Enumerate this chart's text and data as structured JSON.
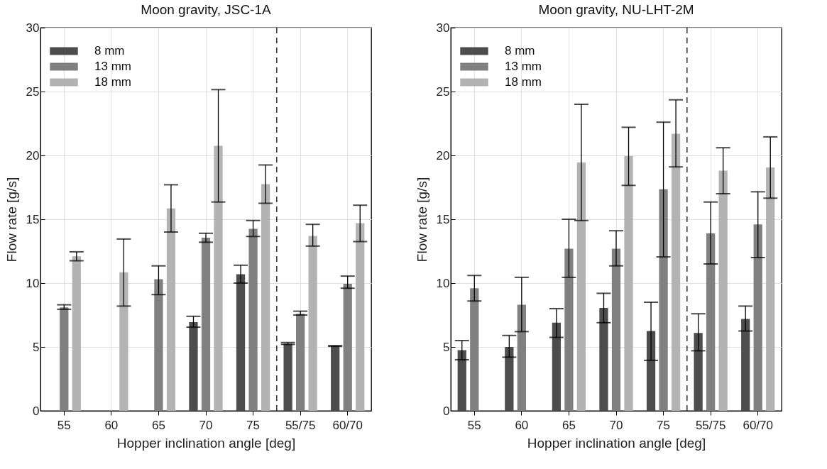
{
  "chart_data": [
    {
      "type": "bar",
      "title": "Moon gravity, JSC-1A",
      "xlabel": "Hopper inclination angle [deg]",
      "ylabel": "Flow rate [g/s]",
      "categories": [
        "55",
        "60",
        "65",
        "70",
        "75",
        "55/75",
        "60/70"
      ],
      "ylim": [
        0,
        30
      ],
      "yticks": [
        0,
        5,
        10,
        15,
        20,
        25,
        30
      ],
      "grid": true,
      "legend": "top left",
      "series": [
        {
          "name": "8 mm",
          "color": "#4d4d4d",
          "values": [
            null,
            null,
            null,
            6.95,
            10.7,
            5.25,
            5.1
          ],
          "errors": [
            null,
            null,
            null,
            [
              6.55,
              7.4
            ],
            [
              10.0,
              11.4
            ],
            [
              5.2,
              5.35
            ],
            [
              5.05,
              5.1
            ]
          ]
        },
        {
          "name": "13 mm",
          "color": "#808080",
          "values": [
            8.1,
            null,
            10.3,
            13.55,
            14.25,
            7.6,
            9.95
          ],
          "errors": [
            [
              7.95,
              8.3
            ],
            null,
            [
              9.1,
              11.35
            ],
            [
              13.2,
              13.9
            ],
            [
              13.65,
              14.9
            ],
            [
              7.5,
              7.8
            ],
            [
              9.6,
              10.55
            ]
          ]
        },
        {
          "name": "18 mm",
          "color": "#b3b3b3",
          "values": [
            12.1,
            10.85,
            15.85,
            20.75,
            17.75,
            13.7,
            14.7
          ],
          "errors": [
            [
              11.75,
              12.45
            ],
            [
              8.2,
              13.45
            ],
            [
              14.0,
              17.7
            ],
            [
              16.35,
              25.15
            ],
            [
              16.25,
              19.25
            ],
            [
              12.9,
              14.6
            ],
            [
              13.25,
              16.1
            ]
          ]
        }
      ],
      "ref_lines": [
        {
          "axis": "x",
          "value": "75",
          "line_style": "dashed",
          "color": "#000000"
        }
      ]
    },
    {
      "type": "bar",
      "title": "Moon gravity, NU-LHT-2M",
      "xlabel": "Hopper inclination angle [deg]",
      "ylabel": "Flow rate [g/s]",
      "categories": [
        "55",
        "60",
        "65",
        "70",
        "75",
        "55/75",
        "60/70"
      ],
      "ylim": [
        0,
        30
      ],
      "yticks": [
        0,
        5,
        10,
        15,
        20,
        25,
        30
      ],
      "grid": true,
      "legend": "top left",
      "series": [
        {
          "name": "8 mm",
          "color": "#4d4d4d",
          "values": [
            4.75,
            5.0,
            6.9,
            8.05,
            6.25,
            6.1,
            7.2
          ],
          "errors": [
            [
              4.0,
              5.5
            ],
            [
              4.2,
              5.9
            ],
            [
              5.75,
              8.0
            ],
            [
              6.9,
              9.2
            ],
            [
              3.95,
              8.5
            ],
            [
              4.7,
              7.6
            ],
            [
              6.25,
              8.2
            ]
          ]
        },
        {
          "name": "13 mm",
          "color": "#808080",
          "values": [
            9.6,
            8.3,
            12.7,
            12.7,
            17.35,
            13.9,
            14.6
          ],
          "errors": [
            [
              8.6,
              10.6
            ],
            [
              6.2,
              10.45
            ],
            [
              10.45,
              15.0
            ],
            [
              11.35,
              14.1
            ],
            [
              12.05,
              22.6
            ],
            [
              11.5,
              16.35
            ],
            [
              12.0,
              17.15
            ]
          ]
        },
        {
          "name": "18 mm",
          "color": "#b3b3b3",
          "values": [
            null,
            null,
            19.45,
            19.95,
            21.7,
            18.8,
            19.05
          ],
          "errors": [
            null,
            null,
            [
              14.9,
              24.0
            ],
            [
              17.65,
              22.2
            ],
            [
              19.1,
              24.35
            ],
            [
              17.0,
              20.6
            ],
            [
              16.65,
              21.45
            ]
          ]
        }
      ],
      "ref_lines": [
        {
          "axis": "x",
          "value": "75",
          "line_style": "dashed",
          "color": "#000000"
        }
      ]
    }
  ]
}
